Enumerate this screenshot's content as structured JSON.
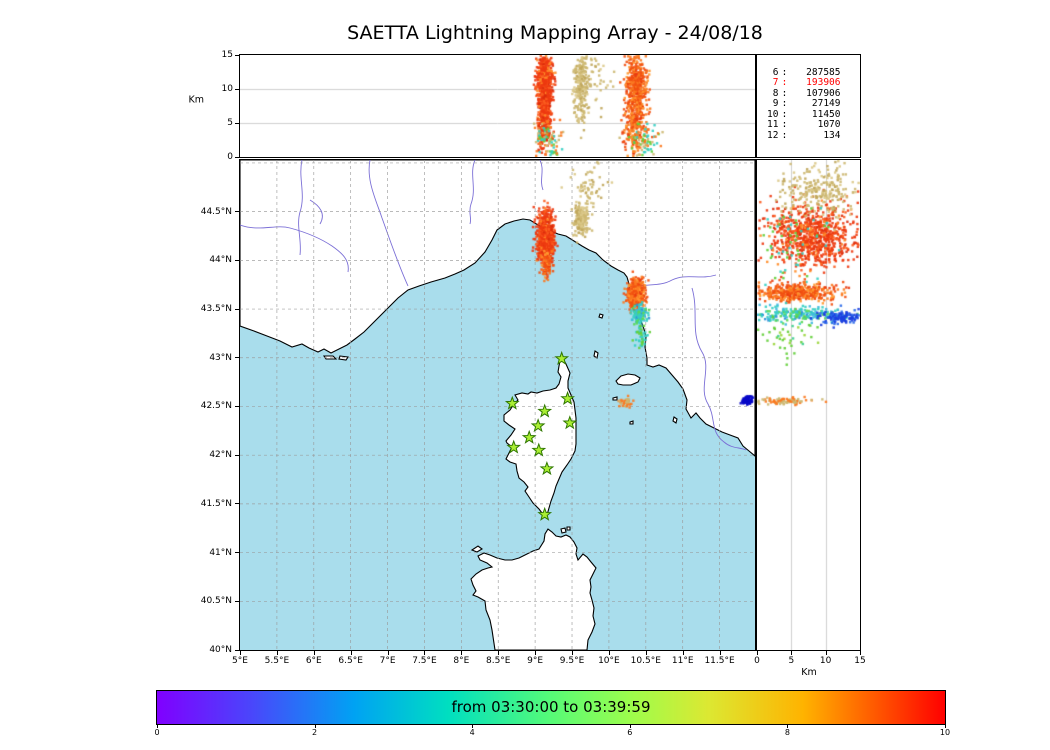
{
  "title": "SAETTA Lightning Mapping Array - 24/08/18",
  "stats": {
    "rows": [
      {
        "level": "6",
        "count": "287585",
        "highlight": false
      },
      {
        "level": "7",
        "count": "193906",
        "highlight": true
      },
      {
        "level": "8",
        "count": "107906",
        "highlight": false
      },
      {
        "level": "9",
        "count": "27149",
        "highlight": false
      },
      {
        "level": "10",
        "count": "11450",
        "highlight": false
      },
      {
        "level": "11",
        "count": "1070",
        "highlight": false
      },
      {
        "level": "12",
        "count": "134",
        "highlight": false
      }
    ],
    "highlight_color": "#ff0000",
    "text_color": "#000000"
  },
  "axes": {
    "top": {
      "ylabel": "Km",
      "yticks": [
        {
          "v": 15,
          "label": "15"
        },
        {
          "v": 10,
          "label": "10"
        },
        {
          "v": 5,
          "label": "5"
        },
        {
          "v": 0,
          "label": "0"
        }
      ]
    },
    "map": {
      "lat_ticks": [
        {
          "v": 44.5,
          "label": "44.5°N"
        },
        {
          "v": 44,
          "label": "44°N"
        },
        {
          "v": 43.5,
          "label": "43.5°N"
        },
        {
          "v": 43,
          "label": "43°N"
        },
        {
          "v": 42.5,
          "label": "42.5°N"
        },
        {
          "v": 42,
          "label": "42°N"
        },
        {
          "v": 41.5,
          "label": "41.5°N"
        },
        {
          "v": 41,
          "label": "41°N"
        },
        {
          "v": 40.5,
          "label": "40.5°N"
        },
        {
          "v": 40,
          "label": "40°N"
        }
      ],
      "lon_ticks": [
        {
          "v": 5,
          "label": "5°E"
        },
        {
          "v": 5.5,
          "label": "5.5°E"
        },
        {
          "v": 6,
          "label": "6°E"
        },
        {
          "v": 6.5,
          "label": "6.5°E"
        },
        {
          "v": 7,
          "label": "7°E"
        },
        {
          "v": 7.5,
          "label": "7.5°E"
        },
        {
          "v": 8,
          "label": "8°E"
        },
        {
          "v": 8.5,
          "label": "8.5°E"
        },
        {
          "v": 9,
          "label": "9°E"
        },
        {
          "v": 9.5,
          "label": "9.5°E"
        },
        {
          "v": 10,
          "label": "10°E"
        },
        {
          "v": 10.5,
          "label": "10.5°E"
        },
        {
          "v": 11,
          "label": "11°E"
        },
        {
          "v": 11.5,
          "label": "11.5°E"
        }
      ]
    },
    "right": {
      "xlabel": "Km",
      "xticks": [
        {
          "v": 0,
          "label": "0"
        },
        {
          "v": 5,
          "label": "5"
        },
        {
          "v": 10,
          "label": "10"
        },
        {
          "v": 15,
          "label": "15"
        }
      ]
    }
  },
  "colorbar": {
    "label": "from 03:30:00 to 03:39:59",
    "ticks": [
      {
        "v": 0,
        "label": "0"
      },
      {
        "v": 2,
        "label": "2"
      },
      {
        "v": 4,
        "label": "4"
      },
      {
        "v": 6,
        "label": "6"
      },
      {
        "v": 8,
        "label": "8"
      },
      {
        "v": 10,
        "label": "10"
      }
    ],
    "gradient": [
      "#8000ff 0%",
      "#4a46fb 12%",
      "#00a2f3 25%",
      "#00dfc0 37%",
      "#56fb77 50%",
      "#9cfd4c 60%",
      "#dce832 70%",
      "#ffb300 82%",
      "#ff5a00 91%",
      "#ff0000 100%"
    ]
  },
  "map_colors": {
    "sea": "#a9ddec",
    "land": "#ffffff",
    "coast": "#000000",
    "river": "#7b6fd6",
    "grid": "#999999"
  },
  "stations": {
    "marker": "star",
    "fill": "#aaee33",
    "stroke": "#2f7700",
    "points": [
      [
        9.36,
        42.99
      ],
      [
        8.69,
        42.53
      ],
      [
        9.44,
        42.58
      ],
      [
        9.13,
        42.45
      ],
      [
        9.04,
        42.3
      ],
      [
        9.47,
        42.33
      ],
      [
        8.71,
        42.08
      ],
      [
        9.05,
        42.05
      ],
      [
        9.16,
        41.86
      ],
      [
        9.13,
        41.39
      ],
      [
        8.92,
        42.18
      ]
    ]
  },
  "palettes": {
    "red": [
      [
        "#ee3a10",
        0.6
      ],
      [
        "#fb5c1f",
        0.2
      ],
      [
        "#ff8c28",
        0.12
      ],
      [
        "#d92d0c",
        0.08
      ]
    ],
    "tan": [
      [
        "#cdb873",
        0.55
      ],
      [
        "#dbc98a",
        0.25
      ],
      [
        "#c0a75c",
        0.2
      ]
    ],
    "orange": [
      [
        "#f25010",
        0.45
      ],
      [
        "#fb7a20",
        0.3
      ],
      [
        "#ff9830",
        0.15
      ],
      [
        "#e83b10",
        0.1
      ]
    ],
    "cyan": [
      [
        "#35cfc3",
        0.45
      ],
      [
        "#3fb9e0",
        0.25
      ],
      [
        "#59d858",
        0.2
      ],
      [
        "#2e8fd8",
        0.1
      ]
    ],
    "green": [
      [
        "#63cf3a",
        0.6
      ],
      [
        "#9ad63c",
        0.25
      ],
      [
        "#3fcf8f",
        0.15
      ]
    ],
    "blue": [
      [
        "#1b3fe0",
        0.7
      ],
      [
        "#2a6ae8",
        0.3
      ]
    ],
    "navy": [
      [
        "#0808c8",
        1
      ]
    ],
    "mixlow": [
      [
        "#35cfc3",
        0.3
      ],
      [
        "#63cf3a",
        0.2
      ],
      [
        "#cdb873",
        0.25
      ],
      [
        "#fb7a20",
        0.25
      ]
    ],
    "orangetan": [
      [
        "#fb7a20",
        0.5
      ],
      [
        "#cdb873",
        0.5
      ]
    ],
    "greencyan": [
      [
        "#63cf3a",
        0.5
      ],
      [
        "#35cfc3",
        0.5
      ]
    ]
  },
  "chart_data": [
    {
      "id": "altitude-vs-longitude",
      "panel": "top",
      "type": "scatter",
      "xlabel": "longitude_deg_E",
      "ylabel": "altitude_km",
      "xlim": [
        5,
        11.98
      ],
      "ylim": [
        0,
        15
      ],
      "clusters": [
        {
          "cx": 9.13,
          "sx": 0.05,
          "cy": 10.2,
          "sy": 2.9,
          "n": 850,
          "palette": "red"
        },
        {
          "cx": 9.13,
          "sx": 0.045,
          "cy": 4.2,
          "sy": 1.6,
          "n": 160,
          "palette": "red"
        },
        {
          "cx": 9.17,
          "sx": 0.1,
          "cy": 2.2,
          "sy": 1.4,
          "n": 90,
          "palette": "mixlow"
        },
        {
          "cx": 9.62,
          "sx": 0.05,
          "cy": 10.5,
          "sy": 2.6,
          "n": 240,
          "palette": "tan"
        },
        {
          "cx": 9.82,
          "sx": 0.12,
          "cy": 11.5,
          "sy": 2.2,
          "n": 50,
          "palette": "tan"
        },
        {
          "cx": 10.37,
          "sx": 0.07,
          "cy": 9.8,
          "sy": 3.1,
          "n": 560,
          "palette": "orange"
        },
        {
          "cx": 10.33,
          "sx": 0.06,
          "cy": 3.4,
          "sy": 1.8,
          "n": 120,
          "palette": "orange"
        },
        {
          "cx": 10.45,
          "sx": 0.1,
          "cy": 2.2,
          "sy": 1.5,
          "n": 90,
          "palette": "mixlow"
        }
      ]
    },
    {
      "id": "map-sources",
      "panel": "map",
      "type": "scatter",
      "xlabel": "longitude_deg_E",
      "ylabel": "latitude_deg_N",
      "xlim": [
        5,
        11.98
      ],
      "ylim": [
        40,
        45.03
      ],
      "clusters": [
        {
          "cx": 9.14,
          "sx": 0.055,
          "cy": 44.23,
          "sy": 0.13,
          "n": 800,
          "palette": "red"
        },
        {
          "cx": 9.16,
          "sx": 0.04,
          "cy": 43.96,
          "sy": 0.07,
          "n": 70,
          "palette": "orange"
        },
        {
          "cx": 9.62,
          "sx": 0.05,
          "cy": 44.42,
          "sy": 0.08,
          "n": 200,
          "palette": "tan"
        },
        {
          "cx": 9.72,
          "sx": 0.13,
          "cy": 44.75,
          "sy": 0.13,
          "n": 60,
          "palette": "tan"
        },
        {
          "cx": 10.37,
          "sx": 0.06,
          "cy": 43.66,
          "sy": 0.08,
          "n": 420,
          "palette": "orange"
        },
        {
          "cx": 10.42,
          "sx": 0.05,
          "cy": 43.45,
          "sy": 0.05,
          "n": 150,
          "palette": "cyan"
        },
        {
          "cx": 10.45,
          "sx": 0.05,
          "cy": 43.22,
          "sy": 0.06,
          "n": 40,
          "palette": "greencyan"
        },
        {
          "cx": 10.22,
          "sx": 0.05,
          "cy": 42.55,
          "sy": 0.025,
          "n": 40,
          "palette": "orangetan"
        },
        {
          "cx": 11.88,
          "sx": 0.035,
          "cy": 42.56,
          "sy": 0.022,
          "n": 80,
          "palette": "navy"
        }
      ]
    },
    {
      "id": "altitude-vs-latitude",
      "panel": "right",
      "type": "scatter",
      "xlabel": "altitude_km",
      "ylabel": "latitude_deg_N",
      "xlim": [
        0,
        15
      ],
      "ylim": [
        40,
        45.03
      ],
      "clusters": [
        {
          "cx": 8,
          "sx": 3.3,
          "cy": 44.25,
          "sy": 0.16,
          "n": 850,
          "palette": "red"
        },
        {
          "cx": 9,
          "sx": 2.8,
          "cy": 44.73,
          "sy": 0.13,
          "n": 260,
          "palette": "tan"
        },
        {
          "cx": 5,
          "sx": 3,
          "cy": 44.15,
          "sy": 0.2,
          "n": 70,
          "palette": "greencyan"
        },
        {
          "cx": 6,
          "sx": 3,
          "cy": 43.67,
          "sy": 0.05,
          "n": 420,
          "palette": "orange"
        },
        {
          "cx": 5.5,
          "sx": 3.5,
          "cy": 43.45,
          "sy": 0.04,
          "n": 220,
          "palette": "cyan"
        },
        {
          "cx": 12.5,
          "sx": 1.6,
          "cy": 43.42,
          "sy": 0.03,
          "n": 130,
          "palette": "blue"
        },
        {
          "cx": 4,
          "sx": 2.4,
          "cy": 43.24,
          "sy": 0.1,
          "n": 45,
          "palette": "green"
        },
        {
          "cx": 4,
          "sx": 2.2,
          "cy": 42.55,
          "sy": 0.02,
          "n": 90,
          "palette": "orangetan"
        }
      ]
    }
  ]
}
